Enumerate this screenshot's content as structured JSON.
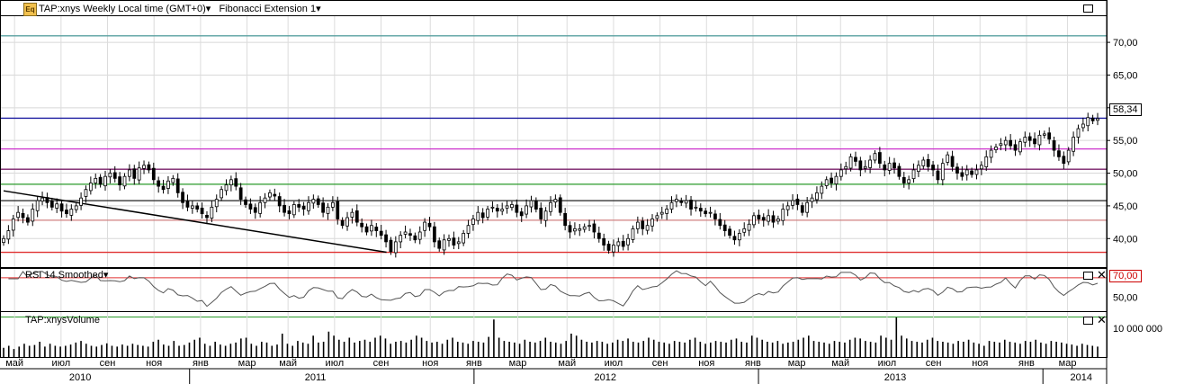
{
  "header": {
    "instrument": "TAP:xnys",
    "timeframe_label": "Weekly Local time (GMT+0)",
    "study_label": "Fibonacci Extension 1",
    "icon": "eq-instrument-icon"
  },
  "current_price_label": "58,34",
  "rsi_panel": {
    "title": "RSI 14 Smoothed",
    "level_label": "70,00",
    "axis_ticks": [
      "50,00"
    ]
  },
  "volume_panel": {
    "title": "TAP:xnysVolume",
    "axis_ticks": [
      "10 000 000"
    ]
  },
  "colors": {
    "fib_cyan": "#5aa0a0",
    "fib_blue": "#1a1aa0",
    "fib_magenta": "#cc33cc",
    "fib_purple": "#7a1f6a",
    "fib_green": "#2a9a2a",
    "fib_black": "#222222",
    "fib_salmon": "#d08080",
    "fib_red": "#e03030",
    "up": "#ffffff",
    "down": "#000000"
  },
  "chart_data": {
    "type": "candlestick",
    "ylim": [
      35.5,
      74
    ],
    "yticks": [
      "40,00",
      "45,00",
      "50,00",
      "55,00",
      "60,00",
      "65,00",
      "70,00"
    ],
    "ytick_values": [
      40,
      45,
      50,
      55,
      60,
      65,
      70
    ],
    "x_month_labels": [
      "май",
      "июл",
      "сен",
      "ноя",
      "янв",
      "мар",
      "май",
      "июл",
      "сен",
      "ноя",
      "янв",
      "мар",
      "май",
      "июл",
      "сен",
      "ноя",
      "янв",
      "мар",
      "май",
      "июл",
      "сен",
      "ноя",
      "янв",
      "мар"
    ],
    "x_year_labels": [
      "2010",
      "2011",
      "2012",
      "2013",
      "2014"
    ],
    "x_range_weeks": [
      0,
      200
    ],
    "month_label_weeks": [
      2,
      10.5,
      19,
      27.5,
      36,
      44.5,
      52,
      60.5,
      69,
      78,
      86,
      94,
      103,
      111.5,
      120,
      128.5,
      137,
      145,
      153,
      161.5,
      170,
      178.5,
      187,
      194.5
    ],
    "year_label_weeks": [
      14,
      57,
      110,
      163,
      197
    ],
    "year_boundary_weeks": [
      34,
      86,
      138,
      190
    ],
    "fib_levels": [
      {
        "value": 71.0,
        "color": "#5aa0a0"
      },
      {
        "value": 58.4,
        "color": "#1a1aa0"
      },
      {
        "value": 53.7,
        "color": "#cc33cc"
      },
      {
        "value": 50.6,
        "color": "#7a1f6a"
      },
      {
        "value": 48.3,
        "color": "#2a9a2a"
      },
      {
        "value": 45.8,
        "color": "#222222"
      },
      {
        "value": 42.8,
        "color": "#d08080"
      },
      {
        "value": 37.9,
        "color": "#e03030"
      }
    ],
    "trendline": {
      "from": [
        0,
        47.3
      ],
      "to": [
        70,
        37.9
      ]
    },
    "close": [
      40.0,
      41.2,
      43.0,
      44.0,
      43.2,
      42.5,
      44.5,
      45.8,
      46.2,
      45.5,
      44.8,
      45.3,
      44.2,
      43.8,
      44.5,
      45.0,
      46.2,
      47.5,
      48.5,
      49.2,
      48.3,
      49.5,
      50.0,
      49.2,
      48.2,
      49.5,
      50.5,
      49.2,
      50.8,
      51.2,
      50.5,
      49.0,
      48.0,
      47.5,
      48.8,
      49.2,
      47.0,
      45.5,
      44.8,
      45.0,
      44.5,
      43.8,
      43.2,
      44.8,
      46.0,
      47.5,
      48.2,
      49.0,
      48.0,
      46.0,
      45.2,
      44.5,
      44.0,
      45.5,
      46.2,
      47.0,
      46.5,
      45.0,
      44.0,
      43.8,
      45.2,
      44.8,
      44.5,
      45.5,
      46.0,
      45.2,
      44.0,
      44.8,
      45.5,
      43.0,
      42.0,
      43.2,
      44.0,
      42.5,
      41.8,
      41.0,
      42.0,
      41.2,
      40.5,
      39.5,
      38.0,
      39.5,
      40.5,
      41.0,
      40.5,
      39.8,
      41.0,
      42.5,
      41.8,
      39.5,
      38.5,
      39.8,
      40.0,
      39.0,
      39.5,
      40.8,
      42.0,
      43.0,
      44.0,
      43.2,
      44.5,
      44.8,
      44.2,
      44.5,
      45.0,
      45.2,
      44.0,
      43.5,
      45.0,
      45.8,
      44.5,
      43.0,
      44.2,
      45.5,
      46.0,
      44.0,
      42.0,
      41.0,
      41.5,
      41.5,
      41.8,
      42.0,
      41.0,
      40.0,
      39.0,
      38.2,
      39.0,
      39.5,
      38.8,
      40.0,
      41.5,
      42.5,
      41.5,
      42.0,
      43.0,
      43.5,
      44.0,
      44.5,
      45.5,
      46.0,
      45.5,
      45.8,
      44.5,
      44.8,
      44.2,
      43.8,
      44.0,
      43.0,
      42.0,
      41.2,
      40.5,
      39.8,
      40.8,
      41.5,
      42.2,
      43.5,
      43.0,
      42.8,
      43.5,
      42.5,
      43.0,
      44.5,
      45.0,
      45.8,
      45.2,
      44.0,
      45.5,
      46.2,
      47.0,
      48.0,
      49.0,
      48.5,
      49.5,
      50.5,
      51.0,
      52.5,
      51.8,
      50.5,
      51.0,
      52.0,
      53.0,
      51.5,
      50.5,
      51.5,
      50.8,
      49.5,
      48.5,
      49.0,
      50.5,
      51.2,
      52.0,
      51.0,
      50.5,
      49.0,
      51.5,
      52.8,
      51.0,
      50.0,
      49.5,
      50.5,
      49.8,
      50.5,
      51.2,
      52.5,
      53.5,
      54.0,
      54.5,
      55.0,
      54.2,
      53.5,
      54.8,
      55.5,
      55.0,
      54.5,
      55.8,
      56.0,
      55.2,
      53.5,
      52.5,
      51.5,
      53.5,
      55.5,
      56.8,
      57.5,
      58.5,
      58.0,
      58.34
    ],
    "volume_relative": [
      0.25,
      0.3,
      0.22,
      0.28,
      0.35,
      0.3,
      0.32,
      0.4,
      0.28,
      0.35,
      0.3,
      0.28,
      0.3,
      0.33,
      0.38,
      0.42,
      0.35,
      0.3,
      0.28,
      0.32,
      0.36,
      0.3,
      0.28,
      0.33,
      0.3,
      0.35,
      0.32,
      0.3,
      0.28,
      0.4,
      0.45,
      0.33,
      0.3,
      0.42,
      0.3,
      0.32,
      0.38,
      0.45,
      0.5,
      0.35,
      0.3,
      0.4,
      0.33,
      0.3,
      0.35,
      0.38,
      0.48,
      0.5,
      0.35,
      0.3,
      0.4,
      0.38,
      0.3,
      0.33,
      0.6,
      0.35,
      0.3,
      0.42,
      0.38,
      0.35,
      0.55,
      0.38,
      0.4,
      0.65,
      0.55,
      0.45,
      0.4,
      0.5,
      0.38,
      0.42,
      0.45,
      0.4,
      0.5,
      0.55,
      0.48,
      0.35,
      0.4,
      0.42,
      0.38,
      0.45,
      0.55,
      0.5,
      0.42,
      0.38,
      0.4,
      0.35,
      0.45,
      0.5,
      0.4,
      0.38,
      0.35,
      0.42,
      0.4,
      0.38,
      0.52,
      0.95,
      0.5,
      0.42,
      0.4,
      0.38,
      0.35,
      0.45,
      0.4,
      0.38,
      0.42,
      0.5,
      0.4,
      0.38,
      0.35,
      0.42,
      0.6,
      0.55,
      0.45,
      0.4,
      0.38,
      0.42,
      0.4,
      0.35,
      0.38,
      0.45,
      0.42,
      0.48,
      0.4,
      0.38,
      0.42,
      0.5,
      0.45,
      0.4,
      0.38,
      0.35,
      0.42,
      0.4,
      0.38,
      0.45,
      0.5,
      0.4,
      0.35,
      0.38,
      0.42,
      0.4,
      0.38,
      0.45,
      0.48,
      0.4,
      0.38,
      0.55,
      0.5,
      0.45,
      0.4,
      0.38,
      0.42,
      0.35,
      0.38,
      0.4,
      0.45,
      0.5,
      0.55,
      0.42,
      0.4,
      0.38,
      0.35,
      0.42,
      0.4,
      0.38,
      0.45,
      0.5,
      0.48,
      0.42,
      0.4,
      0.38,
      0.55,
      0.5,
      0.45,
      1.0,
      0.55,
      0.48,
      0.42,
      0.4,
      0.38,
      0.45,
      0.5,
      0.42,
      0.4,
      0.38,
      0.35,
      0.42,
      0.4,
      0.45,
      0.38,
      0.35,
      0.3,
      0.42,
      0.4,
      0.38,
      0.45,
      0.4,
      0.38,
      0.35,
      0.42,
      0.4,
      0.45,
      0.38,
      0.35,
      0.42,
      0.4,
      0.38,
      0.35,
      0.33,
      0.3,
      0.35,
      0.32,
      0.3,
      0.28
    ],
    "rsi_ylim": [
      35,
      80
    ],
    "rsi_level": 70
  }
}
